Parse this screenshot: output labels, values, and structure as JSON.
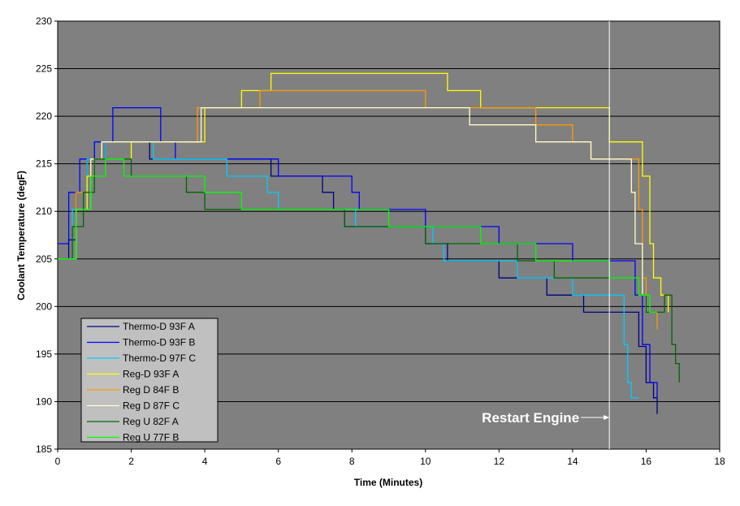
{
  "chart_data": {
    "type": "line",
    "xlabel": "Time (Minutes)",
    "ylabel": "Coolant Temperature (degF)",
    "xlim": [
      0,
      18
    ],
    "ylim": [
      185,
      230
    ],
    "x_ticks": [
      "0",
      "2",
      "4",
      "6",
      "8",
      "10",
      "12",
      "14",
      "16",
      "18"
    ],
    "y_ticks": [
      "185",
      "190",
      "195",
      "200",
      "205",
      "210",
      "215",
      "220",
      "225",
      "230"
    ],
    "grid": "horizontal",
    "plot_background": "#808080",
    "legend_position": "bottom-left",
    "annotation": {
      "text": "Restart Engine",
      "x": 15.0
    },
    "series": [
      {
        "name": "Thermo-D 93F A",
        "color": "#000080",
        "points": [
          [
            0,
            205
          ],
          [
            0.3,
            207
          ],
          [
            0.5,
            212
          ],
          [
            0.8,
            215.5
          ],
          [
            1.3,
            217.3
          ],
          [
            2.0,
            217.3
          ],
          [
            2.5,
            215.5
          ],
          [
            4.5,
            215.5
          ],
          [
            5.6,
            215.5
          ],
          [
            5.8,
            213.7
          ],
          [
            6.8,
            213.7
          ],
          [
            7.2,
            212
          ],
          [
            7.5,
            210.2
          ],
          [
            7.8,
            208.4
          ],
          [
            8.9,
            208.4
          ],
          [
            9.9,
            208.4
          ],
          [
            10.0,
            206.6
          ],
          [
            10.4,
            206.6
          ],
          [
            10.6,
            204.8
          ],
          [
            11.7,
            204.8
          ],
          [
            12.0,
            203
          ],
          [
            12.3,
            203
          ],
          [
            13.3,
            201.2
          ],
          [
            14.0,
            201.2
          ],
          [
            14.3,
            199.4
          ],
          [
            15.0,
            199.4
          ],
          [
            15.6,
            199.4
          ],
          [
            15.8,
            195.8
          ],
          [
            16.0,
            192
          ],
          [
            16.2,
            190.4
          ],
          [
            16.3,
            188.7
          ]
        ]
      },
      {
        "name": "Thermo-D 93F B",
        "color": "#0000ff",
        "points": [
          [
            0,
            206.6
          ],
          [
            0.3,
            212
          ],
          [
            0.6,
            215.5
          ],
          [
            1.0,
            217.3
          ],
          [
            1.5,
            220.9
          ],
          [
            2.5,
            220.9
          ],
          [
            2.8,
            217.3
          ],
          [
            3.2,
            215.5
          ],
          [
            5.8,
            215.5
          ],
          [
            6.0,
            213.7
          ],
          [
            7.5,
            213.7
          ],
          [
            8.0,
            212
          ],
          [
            8.2,
            210.2
          ],
          [
            9.9,
            210.2
          ],
          [
            10.0,
            208.4
          ],
          [
            11.0,
            208.4
          ],
          [
            11.8,
            208.4
          ],
          [
            12.0,
            206.6
          ],
          [
            12.2,
            206.6
          ],
          [
            14.0,
            204.8
          ],
          [
            15.6,
            204.8
          ],
          [
            15.7,
            201.2
          ],
          [
            15.9,
            196
          ],
          [
            16.1,
            192
          ],
          [
            16.3,
            190.4
          ]
        ]
      },
      {
        "name": "Thermo-D 97F C",
        "color": "#00ccff",
        "points": [
          [
            0,
            205
          ],
          [
            0.4,
            210.2
          ],
          [
            0.8,
            215.5
          ],
          [
            1.3,
            217.3
          ],
          [
            2.2,
            217.3
          ],
          [
            2.6,
            215.5
          ],
          [
            4.3,
            215.5
          ],
          [
            4.6,
            213.7
          ],
          [
            5.3,
            213.7
          ],
          [
            5.7,
            212
          ],
          [
            6.0,
            210.2
          ],
          [
            7.9,
            210.2
          ],
          [
            8.1,
            208.4
          ],
          [
            10.0,
            208.4
          ],
          [
            10.2,
            206.6
          ],
          [
            10.5,
            204.8
          ],
          [
            12.3,
            204.8
          ],
          [
            12.5,
            203
          ],
          [
            13.5,
            203
          ],
          [
            14.0,
            201.2
          ],
          [
            14.8,
            201.2
          ],
          [
            15.2,
            201.2
          ],
          [
            15.4,
            196
          ],
          [
            15.5,
            192
          ],
          [
            15.6,
            190.4
          ],
          [
            15.8,
            190.4
          ]
        ]
      },
      {
        "name": "Reg-D 93F A",
        "color": "#ffff00",
        "points": [
          [
            0,
            205
          ],
          [
            0.5,
            210.2
          ],
          [
            0.8,
            213.7
          ],
          [
            1.0,
            215.5
          ],
          [
            2.0,
            217.3
          ],
          [
            3.5,
            217.3
          ],
          [
            4.0,
            220.9
          ],
          [
            5.0,
            222.7
          ],
          [
            5.8,
            224.5
          ],
          [
            10.2,
            224.5
          ],
          [
            10.6,
            222.7
          ],
          [
            11.0,
            222.7
          ],
          [
            11.5,
            220.9
          ],
          [
            14.8,
            220.9
          ],
          [
            15.0,
            217.3
          ],
          [
            15.8,
            217.3
          ],
          [
            15.9,
            213.7
          ],
          [
            16.1,
            206.6
          ],
          [
            16.2,
            203
          ],
          [
            16.4,
            201.2
          ],
          [
            16.6,
            199.4
          ]
        ]
      },
      {
        "name": "Reg D 84F B",
        "color": "#ff9900",
        "points": [
          [
            0,
            205
          ],
          [
            0.5,
            212
          ],
          [
            0.9,
            215.5
          ],
          [
            1.2,
            217.3
          ],
          [
            2.0,
            217.3
          ],
          [
            3.5,
            217.3
          ],
          [
            3.8,
            220.9
          ],
          [
            4.5,
            220.9
          ],
          [
            5.5,
            222.7
          ],
          [
            9.5,
            222.7
          ],
          [
            10.0,
            220.9
          ],
          [
            12.4,
            220.9
          ],
          [
            13.0,
            219.1
          ],
          [
            14.0,
            217.3
          ],
          [
            14.5,
            215.5
          ],
          [
            15.5,
            215.5
          ],
          [
            15.8,
            210.2
          ],
          [
            15.9,
            203
          ],
          [
            16.0,
            199.4
          ],
          [
            16.3,
            197.6
          ]
        ]
      },
      {
        "name": "Reg D 87F C",
        "color": "#ffffcc",
        "points": [
          [
            0,
            205
          ],
          [
            0.5,
            210.2
          ],
          [
            0.9,
            215.5
          ],
          [
            1.2,
            217.3
          ],
          [
            3.5,
            217.3
          ],
          [
            3.9,
            220.9
          ],
          [
            4.2,
            220.9
          ],
          [
            11.0,
            220.9
          ],
          [
            11.2,
            219.1
          ],
          [
            12.8,
            219.1
          ],
          [
            13.0,
            217.3
          ],
          [
            14.0,
            217.3
          ],
          [
            14.5,
            215.5
          ],
          [
            15.3,
            215.5
          ],
          [
            15.6,
            212
          ],
          [
            15.7,
            206.6
          ],
          [
            15.9,
            201.2
          ],
          [
            16.0,
            199.4
          ]
        ]
      },
      {
        "name": "Reg U 82F A",
        "color": "#006600",
        "points": [
          [
            0,
            205
          ],
          [
            0.4,
            208.4
          ],
          [
            0.7,
            212
          ],
          [
            1.0,
            215.5
          ],
          [
            1.5,
            215.5
          ],
          [
            2.0,
            213.7
          ],
          [
            3.0,
            213.7
          ],
          [
            3.5,
            212
          ],
          [
            4.0,
            210.2
          ],
          [
            7.5,
            210.2
          ],
          [
            7.8,
            208.4
          ],
          [
            9.5,
            208.4
          ],
          [
            10.0,
            206.6
          ],
          [
            11.5,
            206.6
          ],
          [
            12.5,
            204.8
          ],
          [
            13.5,
            203
          ],
          [
            15.2,
            203
          ],
          [
            15.8,
            201.2
          ],
          [
            16.0,
            199.4
          ],
          [
            16.5,
            201.2
          ],
          [
            16.7,
            196
          ],
          [
            16.8,
            194
          ],
          [
            16.9,
            192
          ]
        ]
      },
      {
        "name": "Reg U 77F B",
        "color": "#00ff00",
        "points": [
          [
            0,
            205
          ],
          [
            0.5,
            210.2
          ],
          [
            0.9,
            213.7
          ],
          [
            1.3,
            215.5
          ],
          [
            1.8,
            213.7
          ],
          [
            3.5,
            213.7
          ],
          [
            4.0,
            212
          ],
          [
            5.0,
            210.2
          ],
          [
            8.5,
            210.2
          ],
          [
            9.0,
            208.4
          ],
          [
            11.0,
            208.4
          ],
          [
            11.5,
            206.6
          ],
          [
            13.0,
            204.8
          ],
          [
            14.0,
            204.8
          ],
          [
            15.0,
            203
          ],
          [
            15.5,
            203
          ],
          [
            15.8,
            201.2
          ],
          [
            16.1,
            199.4
          ],
          [
            16.3,
            199.4
          ]
        ]
      }
    ]
  }
}
